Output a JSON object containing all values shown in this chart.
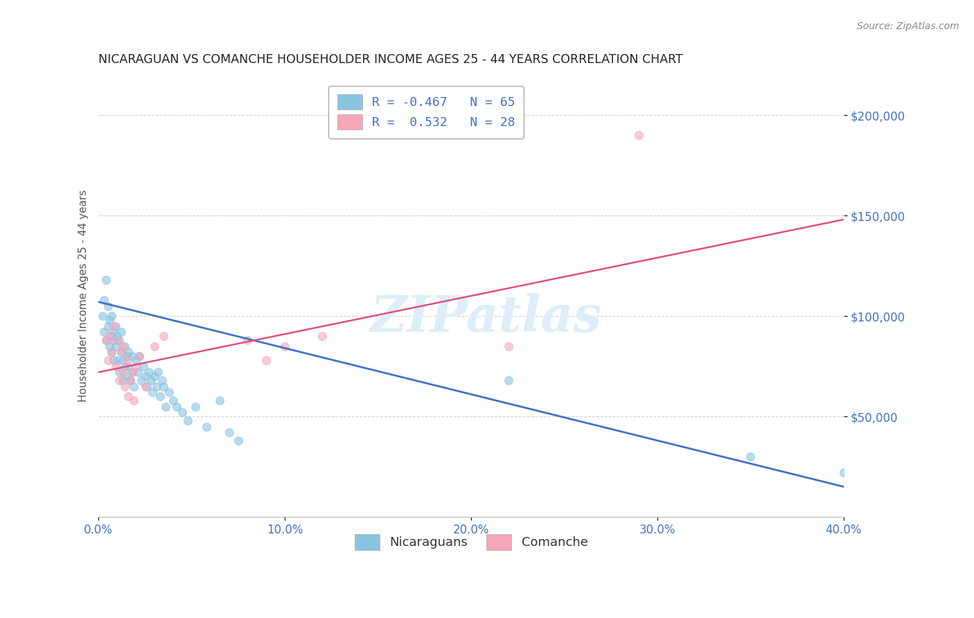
{
  "title": "NICARAGUAN VS COMANCHE HOUSEHOLDER INCOME AGES 25 - 44 YEARS CORRELATION CHART",
  "source": "Source: ZipAtlas.com",
  "ylabel": "Householder Income Ages 25 - 44 years",
  "xlim": [
    0.0,
    0.4
  ],
  "ylim": [
    0,
    220000
  ],
  "blue_color": "#89c4e1",
  "pink_color": "#f4a7b9",
  "blue_line_color": "#4472c4",
  "pink_line_color": "#e05080",
  "title_color": "#222222",
  "axis_label_color": "#4472c4",
  "tick_label_color": "#4472c4",
  "legend_line1": "R = -0.467   N = 65",
  "legend_line2": "R =  0.532   N = 28",
  "blue_scatter_x": [
    0.002,
    0.003,
    0.003,
    0.004,
    0.004,
    0.005,
    0.005,
    0.006,
    0.006,
    0.007,
    0.007,
    0.007,
    0.008,
    0.008,
    0.008,
    0.009,
    0.009,
    0.01,
    0.01,
    0.011,
    0.011,
    0.012,
    0.012,
    0.013,
    0.013,
    0.014,
    0.014,
    0.015,
    0.015,
    0.016,
    0.016,
    0.017,
    0.018,
    0.018,
    0.019,
    0.02,
    0.021,
    0.022,
    0.023,
    0.024,
    0.025,
    0.026,
    0.027,
    0.028,
    0.029,
    0.03,
    0.031,
    0.032,
    0.033,
    0.034,
    0.035,
    0.036,
    0.038,
    0.04,
    0.042,
    0.045,
    0.048,
    0.052,
    0.058,
    0.065,
    0.07,
    0.075,
    0.22,
    0.35,
    0.4
  ],
  "blue_scatter_y": [
    100000,
    92000,
    108000,
    88000,
    118000,
    95000,
    105000,
    85000,
    98000,
    90000,
    100000,
    82000,
    92000,
    78000,
    88000,
    85000,
    95000,
    90000,
    78000,
    88000,
    72000,
    82000,
    92000,
    78000,
    68000,
    75000,
    85000,
    80000,
    70000,
    75000,
    82000,
    68000,
    72000,
    80000,
    65000,
    78000,
    72000,
    80000,
    68000,
    75000,
    70000,
    65000,
    72000,
    68000,
    62000,
    70000,
    65000,
    72000,
    60000,
    68000,
    65000,
    55000,
    62000,
    58000,
    55000,
    52000,
    48000,
    55000,
    45000,
    58000,
    42000,
    38000,
    68000,
    30000,
    22000
  ],
  "pink_scatter_x": [
    0.004,
    0.005,
    0.006,
    0.007,
    0.008,
    0.009,
    0.01,
    0.011,
    0.012,
    0.013,
    0.013,
    0.014,
    0.015,
    0.016,
    0.017,
    0.018,
    0.019,
    0.02,
    0.022,
    0.025,
    0.03,
    0.035,
    0.08,
    0.09,
    0.1,
    0.12,
    0.22,
    0.29
  ],
  "pink_scatter_y": [
    88000,
    78000,
    90000,
    82000,
    95000,
    75000,
    88000,
    68000,
    82000,
    72000,
    85000,
    65000,
    78000,
    60000,
    68000,
    72000,
    58000,
    75000,
    80000,
    65000,
    85000,
    90000,
    88000,
    78000,
    85000,
    90000,
    85000,
    190000
  ],
  "blue_trend_x": [
    0.0,
    0.4
  ],
  "blue_trend_y": [
    107000,
    15000
  ],
  "pink_trend_x": [
    0.0,
    0.4
  ],
  "pink_trend_y": [
    72000,
    148000
  ],
  "background_color": "#ffffff",
  "grid_color": "#cccccc",
  "watermark_text": "ZIPatlas",
  "watermark_color": "#ddeef8",
  "legend_label_blue": "Nicaraguans",
  "legend_label_pink": "Comanche"
}
